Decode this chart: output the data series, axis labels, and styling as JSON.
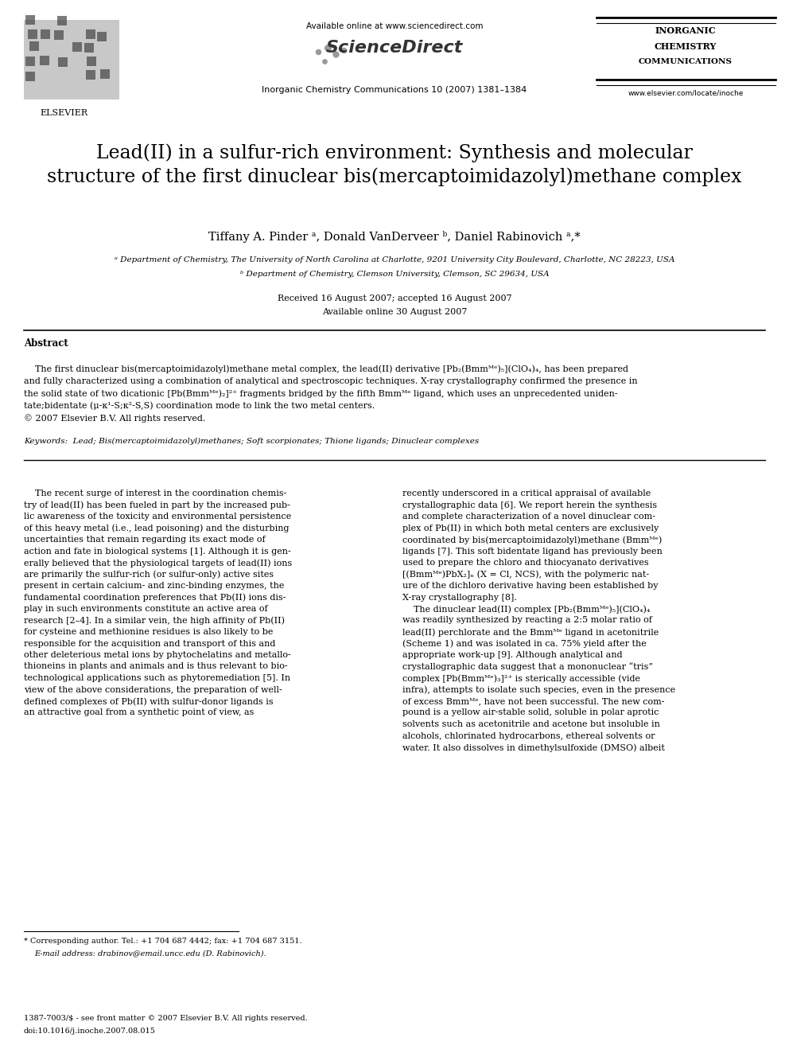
{
  "background_color": "#ffffff",
  "page_width": 9.92,
  "page_height": 13.23,
  "header": {
    "available_online": "Available online at www.sciencedirect.com",
    "sciencedirect": "ScienceDirect",
    "journal_line": "Inorganic Chemistry Communications 10 (2007) 1381–1384",
    "journal_name": "INORGANIC\nCHEMISTRY\nCOMMUNICATIONS",
    "journal_url": "www.elsevier.com/locate/inoche",
    "elsevier": "ELSEVIER"
  },
  "article_title": "Lead(II) in a sulfur-rich environment: Synthesis and molecular\nstructure of the first dinuclear bis(mercaptoimidazolyl)methane complex",
  "authors": "Tiffany A. Pinder ᵃ, Donald VanDerveer ᵇ, Daniel Rabinovich ᵃ,*",
  "affil_a": "ᵃ Department of Chemistry, The University of North Carolina at Charlotte, 9201 University City Boulevard, Charlotte, NC 28223, USA",
  "affil_b": "ᵇ Department of Chemistry, Clemson University, Clemson, SC 29634, USA",
  "received": "Received 16 August 2007; accepted 16 August 2007",
  "available": "Available online 30 August 2007",
  "abstract_title": "Abstract",
  "keywords": "Keywords:  Lead; Bis(mercaptoimidazolyl)methanes; Soft scorpionates; Thione ligands; Dinuclear complexes",
  "left_col_lines": [
    "    The recent surge of interest in the coordination chemis-",
    "try of lead(II) has been fueled in part by the increased pub-",
    "lic awareness of the toxicity and environmental persistence",
    "of this heavy metal (i.e., lead poisoning) and the disturbing",
    "uncertainties that remain regarding its exact mode of",
    "action and fate in biological systems [1]. Although it is gen-",
    "erally believed that the physiological targets of lead(II) ions",
    "are primarily the sulfur-rich (or sulfur-only) active sites",
    "present in certain calcium- and zinc-binding enzymes, the",
    "fundamental coordination preferences that Pb(II) ions dis-",
    "play in such environments constitute an active area of",
    "research [2–4]. In a similar vein, the high affinity of Pb(II)",
    "for cysteine and methionine residues is also likely to be",
    "responsible for the acquisition and transport of this and",
    "other deleterious metal ions by phytochelatins and metallo-",
    "thioneins in plants and animals and is thus relevant to bio-",
    "technological applications such as phytoremediation [5]. In",
    "view of the above considerations, the preparation of well-",
    "defined complexes of Pb(II) with sulfur-donor ligands is",
    "an attractive goal from a synthetic point of view, as"
  ],
  "right_col_lines": [
    "recently underscored in a critical appraisal of available",
    "crystallographic data [6]. We report herein the synthesis",
    "and complete characterization of a novel dinuclear com-",
    "plex of Pb(II) in which both metal centers are exclusively",
    "coordinated by bis(mercaptoimidazolyl)methane (Bmmᴹᵉ)",
    "ligands [7]. This soft bidentate ligand has previously been",
    "used to prepare the chloro and thiocyanato derivatives",
    "[(Bmmᴹᵉ)PbX₂]ₙ (X = Cl, NCS), with the polymeric nat-",
    "ure of the dichloro derivative having been established by",
    "X-ray crystallography [8].",
    "    The dinuclear lead(II) complex [Pb₂(Bmmᴹᵉ)₅](ClO₄)₄",
    "was readily synthesized by reacting a 2:5 molar ratio of",
    "lead(II) perchlorate and the Bmmᴹᵉ ligand in acetonitrile",
    "(Scheme 1) and was isolated in ca. 75% yield after the",
    "appropriate work-up [9]. Although analytical and",
    "crystallographic data suggest that a mononuclear “tris”",
    "complex [Pb(Bmmᴹᵉ)₃]²⁺ is sterically accessible (vide",
    "infra), attempts to isolate such species, even in the presence",
    "of excess Bmmᴹᵉ, have not been successful. The new com-",
    "pound is a yellow air-stable solid, soluble in polar aprotic",
    "solvents such as acetonitrile and acetone but insoluble in",
    "alcohols, chlorinated hydrocarbons, ethereal solvents or",
    "water. It also dissolves in dimethylsulfoxide (DMSO) albeit"
  ],
  "abstract_lines": [
    "    The first dinuclear bis(mercaptoimidazolyl)methane metal complex, the lead(II) derivative [Pb₂(Bmmᴹᵉ)₅](ClO₄)₄, has been prepared",
    "and fully characterized using a combination of analytical and spectroscopic techniques. X-ray crystallography confirmed the presence in",
    "the solid state of two dicationic [Pb(Bmmᴹᵉ)₂]²⁺ fragments bridged by the fifth Bmmᴹᵉ ligand, which uses an unprecedented uniden-",
    "tate;bidentate (μ-κ¹-S;κ²-S,S) coordination mode to link the two metal centers.",
    "© 2007 Elsevier B.V. All rights reserved."
  ]
}
